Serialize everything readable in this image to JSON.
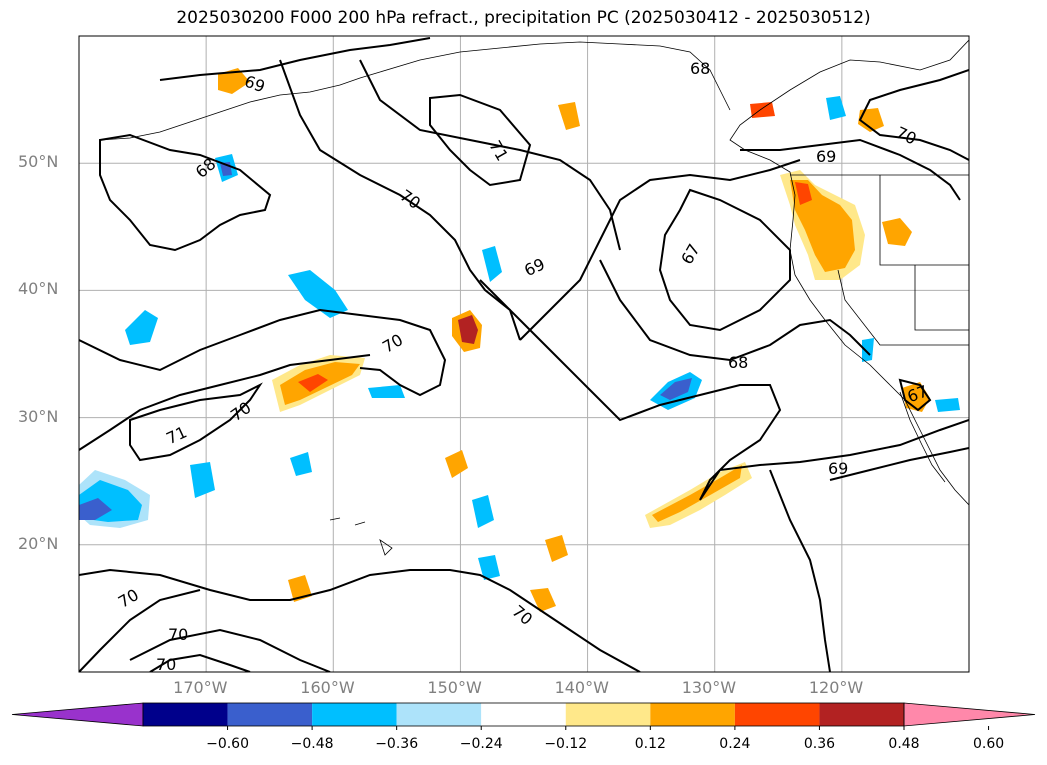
{
  "title": "2025030200 F000 200 hPa refract., precipitation PC (2025030412 - 2025030512)",
  "map": {
    "lon_range": [
      -180,
      -110
    ],
    "lat_range": [
      10,
      60
    ],
    "lat_ticks": [
      {
        "value": 20,
        "label": "20°N"
      },
      {
        "value": 30,
        "label": "30°N"
      },
      {
        "value": 40,
        "label": "40°N"
      },
      {
        "value": 50,
        "label": "50°N"
      }
    ],
    "lon_ticks": [
      {
        "value": -170,
        "label": "170°W"
      },
      {
        "value": -160,
        "label": "160°W"
      },
      {
        "value": -150,
        "label": "150°W"
      },
      {
        "value": -140,
        "label": "140°W"
      },
      {
        "value": -130,
        "label": "130°W"
      },
      {
        "value": -120,
        "label": "120°W"
      }
    ],
    "gridlines": true,
    "contour_labels": [
      "69",
      "68",
      "71",
      "70",
      "69",
      "70",
      "67",
      "68",
      "71",
      "70",
      "69",
      "70",
      "70",
      "70",
      "70",
      "69",
      "68",
      "70",
      "67"
    ]
  },
  "colorbar": {
    "ticks": [
      "−0.60",
      "−0.48",
      "−0.36",
      "−0.24",
      "−0.12",
      "0.12",
      "0.24",
      "0.36",
      "0.48",
      "0.60"
    ],
    "colors": [
      "#9932CC",
      "#00008B",
      "#3A5FCD",
      "#00BFFF",
      "#ADE3FA",
      "#FFFFFF",
      "#FFE88A",
      "#FFA500",
      "#FF4500",
      "#B22222",
      "#FF88AA"
    ]
  }
}
